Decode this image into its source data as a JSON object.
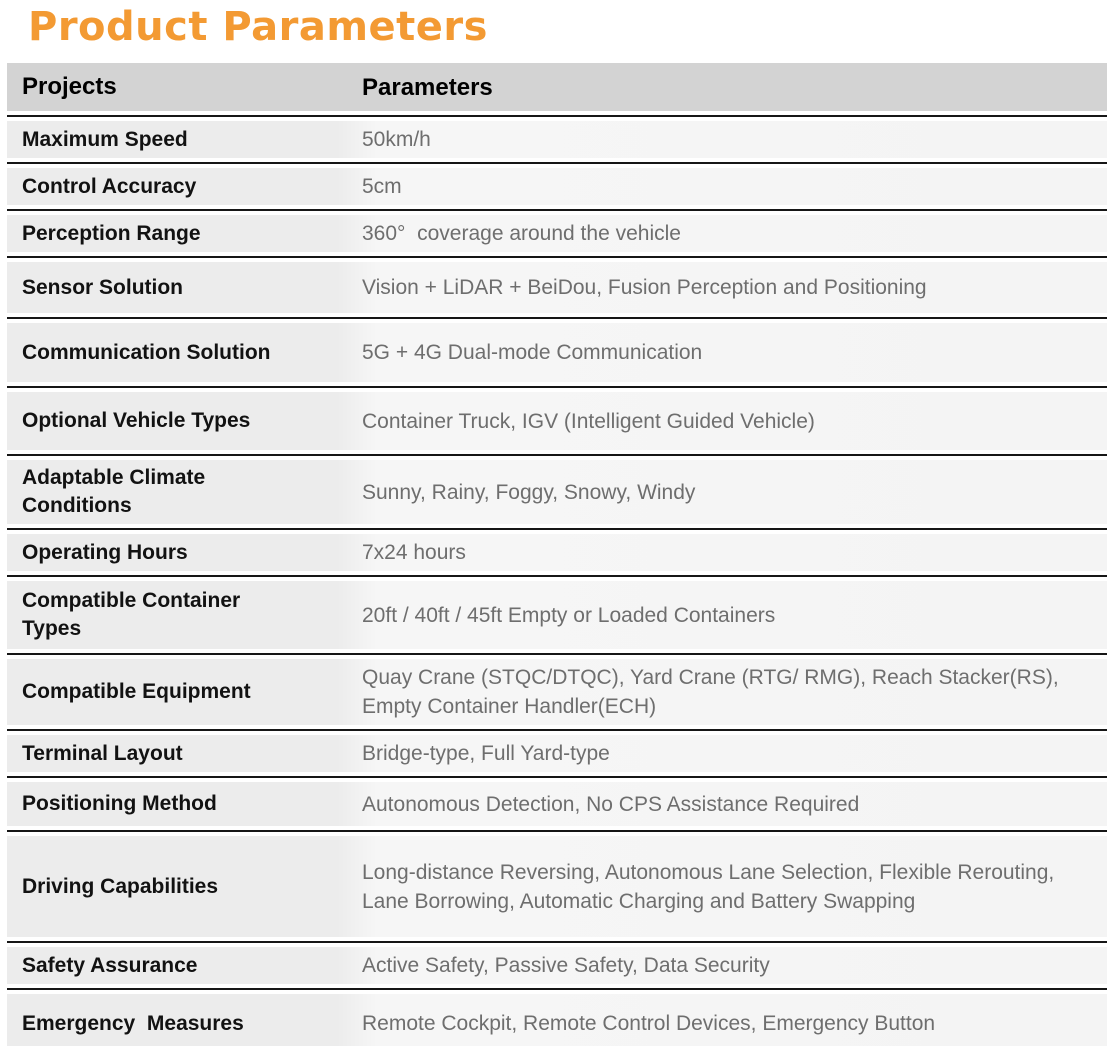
{
  "page": {
    "title": "Product Parameters"
  },
  "colors": {
    "accent_orange": "#F39A33",
    "header_bg": "#D3D3D3",
    "row_bg": "#F0F0F0",
    "label_text": "#121212",
    "value_text": "#6E6E6E",
    "separator": "#161616"
  },
  "table": {
    "headers": {
      "projects": "Projects",
      "parameters": "Parameters"
    },
    "rows": [
      {
        "project": "Maximum Speed",
        "parameter": "50km/h"
      },
      {
        "project": "Control Accuracy",
        "parameter": "5cm"
      },
      {
        "project": "Perception Range",
        "parameter": "360°  coverage around the vehicle"
      },
      {
        "project": "Sensor Solution",
        "parameter": "Vision + LiDAR + BeiDou, Fusion Perception and Positioning"
      },
      {
        "project": "Communication Solution",
        "parameter": "5G + 4G Dual-mode Communication"
      },
      {
        "project": "Optional Vehicle Types",
        "parameter": "Container Truck, IGV (Intelligent Guided Vehicle)"
      },
      {
        "project": "Adaptable Climate Conditions",
        "parameter": "Sunny, Rainy, Foggy, Snowy, Windy"
      },
      {
        "project": "Operating Hours",
        "parameter": "7x24 hours"
      },
      {
        "project": "Compatible Container Types",
        "parameter": "20ft / 40ft / 45ft Empty or Loaded Containers"
      },
      {
        "project": "Compatible Equipment",
        "parameter": "Quay Crane (STQC/DTQC), Yard Crane (RTG/ RMG), Reach Stacker(RS), Empty Container Handler(ECH)"
      },
      {
        "project": "Terminal Layout",
        "parameter": "Bridge-type, Full Yard-type"
      },
      {
        "project": "Positioning Method",
        "parameter": "Autonomous Detection, No CPS Assistance Required"
      },
      {
        "project": "Driving Capabilities",
        "parameter": "Long-distance Reversing, Autonomous Lane Selection, Flexible Rerouting, Lane Borrowing, Automatic Charging and Battery Swapping"
      },
      {
        "project": "Safety Assurance",
        "parameter": "Active Safety, Passive Safety, Data Security"
      },
      {
        "project": "Emergency  Measures",
        "parameter": "Remote Cockpit, Remote Control Devices, Emergency Button"
      }
    ]
  }
}
